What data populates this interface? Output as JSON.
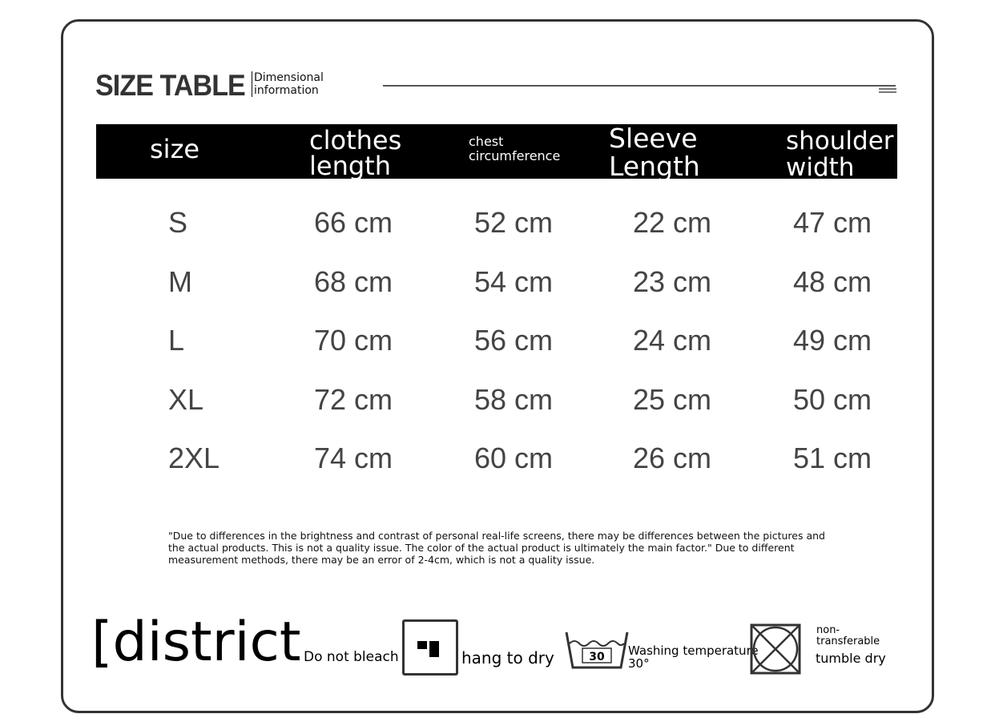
{
  "header": {
    "title": "SIZE TABLE",
    "subtitle_line1": "Dimensional",
    "subtitle_line2": "information"
  },
  "table": {
    "columns": [
      {
        "line1": "size",
        "line2": ""
      },
      {
        "line1": "clothes",
        "line2": "length"
      },
      {
        "line1": "chest",
        "line2": "circumference"
      },
      {
        "line1": "Sleeve",
        "line2": "Length"
      },
      {
        "line1": "shoulder",
        "line2": "width"
      }
    ],
    "rows": [
      [
        "S",
        "66 cm",
        "52 cm",
        "22 cm",
        "47 cm"
      ],
      [
        "M",
        "68 cm",
        "54 cm",
        "23 cm",
        "48 cm"
      ],
      [
        "L",
        "70 cm",
        "56 cm",
        "24 cm",
        "49 cm"
      ],
      [
        "XL",
        "72 cm",
        "58 cm",
        "25 cm",
        "50 cm"
      ],
      [
        "2XL",
        "74 cm",
        "60 cm",
        "26 cm",
        "51 cm"
      ]
    ]
  },
  "note": "\"Due to differences in the brightness and contrast of personal real-life screens, there may be differences between the pictures and the actual products. This is not a quality issue. The color of the actual product is ultimately the main factor.\" Due to different measurement methods, there may be an error of 2-4cm, which is not a quality issue.",
  "care": {
    "heading": "[district",
    "bleach": "Do not bleach",
    "hang_icon": "hang-dry-icon",
    "hang": "hang to dry",
    "wash_icon": "wash-30-icon",
    "wash_number": "30",
    "wash_line1": "Washing temperature",
    "wash_line2": "30°",
    "tumble_icon": "no-tumble-dry-icon",
    "tumble_line1": "non-",
    "tumble_line2": "transferable",
    "tumble_line3": "tumble dry"
  }
}
